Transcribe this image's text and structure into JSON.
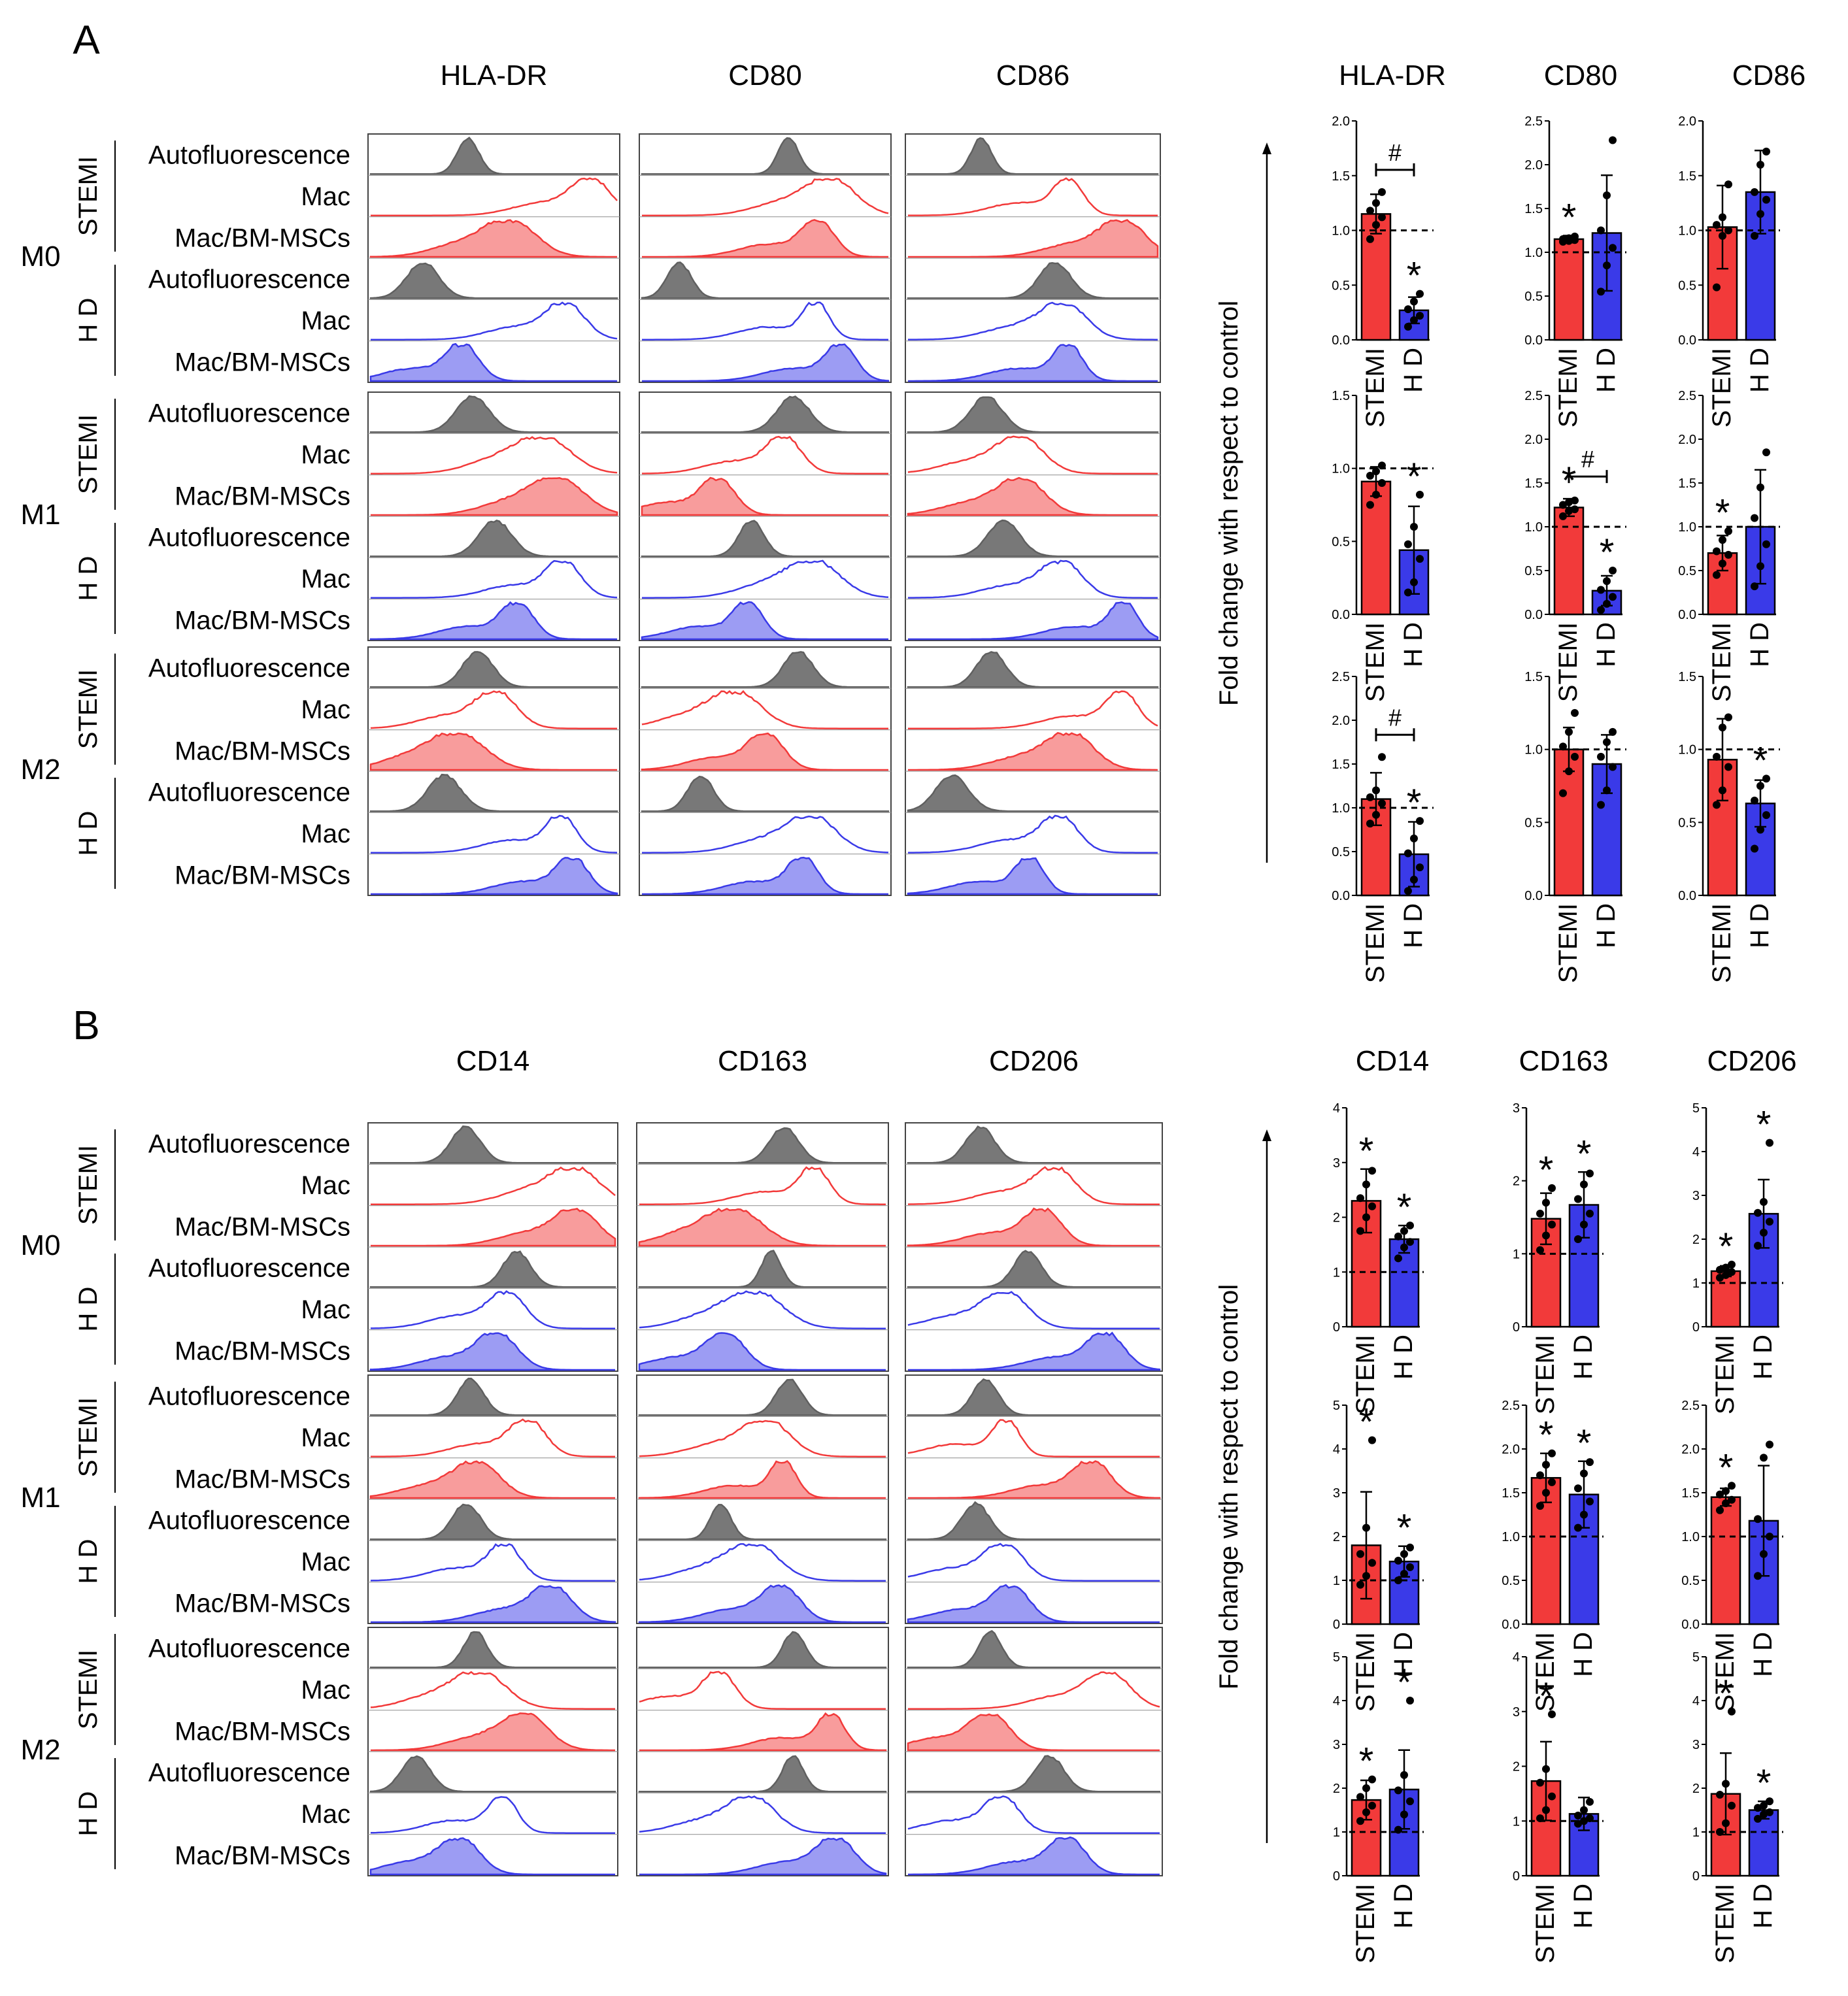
{
  "colors": {
    "stemi": "#f23a3a",
    "hd": "#3a3ae8",
    "auto": "#606060",
    "axis": "#000000"
  },
  "figure": {
    "panels": [
      {
        "letter": "A",
        "hist_markers": [
          "HLA-DR",
          "CD80",
          "CD86"
        ],
        "bar_markers": [
          "HLA-DR",
          "CD80",
          "CD86"
        ]
      },
      {
        "letter": "B",
        "hist_markers": [
          "CD14",
          "CD163",
          "CD206"
        ],
        "bar_markers": [
          "CD14",
          "CD163",
          "CD206"
        ]
      }
    ],
    "macrophage_types": [
      "M0",
      "M1",
      "M2"
    ],
    "donor_groups": [
      "STEMI",
      "H D"
    ],
    "row_labels": [
      "Autofluorescence",
      "Mac",
      "Mac/BM-MSCs"
    ],
    "y_axis_label": "Fold change with respect to control",
    "group_labels": [
      "STEMI",
      "H D"
    ]
  },
  "chart_data": [
    {
      "type": "bar",
      "panel": "A",
      "marker": "HLA-DR",
      "mac_type": "M0",
      "categories": [
        "STEMI",
        "H D"
      ],
      "values": [
        1.15,
        0.27
      ],
      "errors": [
        0.18,
        0.12
      ],
      "points": [
        [
          0.92,
          1.05,
          1.12,
          1.18,
          1.25,
          1.35
        ],
        [
          0.12,
          0.18,
          0.22,
          0.28,
          0.35,
          0.42
        ]
      ],
      "stars": [
        false,
        true
      ],
      "hash": true,
      "reference": 1.0,
      "ylim": [
        0,
        2.0
      ],
      "ticks": [
        "0.0",
        "0.5",
        "1.0",
        "1.5",
        "2.0"
      ]
    },
    {
      "type": "bar",
      "panel": "A",
      "marker": "CD80",
      "mac_type": "M0",
      "categories": [
        "STEMI",
        "H D"
      ],
      "values": [
        1.15,
        1.22
      ],
      "errors": [
        0.04,
        0.66
      ],
      "points": [
        [
          1.12,
          1.13,
          1.14,
          1.15,
          1.16,
          1.18
        ],
        [
          0.55,
          0.85,
          1.05,
          1.25,
          1.65,
          2.28
        ]
      ],
      "stars": [
        true,
        false
      ],
      "hash": false,
      "reference": 1.0,
      "ylim": [
        0,
        2.5
      ],
      "ticks": [
        "0.0",
        "0.5",
        "1.0",
        "1.5",
        "2.0",
        "2.5"
      ]
    },
    {
      "type": "bar",
      "panel": "A",
      "marker": "CD86",
      "mac_type": "M0",
      "categories": [
        "STEMI",
        "H D"
      ],
      "values": [
        1.03,
        1.35
      ],
      "errors": [
        0.38,
        0.38
      ],
      "points": [
        [
          0.48,
          0.95,
          1.0,
          1.05,
          1.12,
          1.42
        ],
        [
          0.95,
          1.15,
          1.28,
          1.35,
          1.6,
          1.72
        ]
      ],
      "stars": [
        false,
        false
      ],
      "hash": false,
      "reference": 1.0,
      "ylim": [
        0,
        2.0
      ],
      "ticks": [
        "0.0",
        "0.5",
        "1.0",
        "1.5",
        "2.0"
      ]
    },
    {
      "type": "bar",
      "panel": "A",
      "marker": "HLA-DR",
      "mac_type": "M1",
      "categories": [
        "STEMI",
        "H D"
      ],
      "values": [
        0.91,
        0.44
      ],
      "errors": [
        0.1,
        0.3
      ],
      "points": [
        [
          0.75,
          0.82,
          0.9,
          0.95,
          0.98,
          1.02
        ],
        [
          0.15,
          0.22,
          0.38,
          0.48,
          0.6,
          0.82
        ]
      ],
      "stars": [
        false,
        true
      ],
      "hash": false,
      "reference": 1.0,
      "ylim": [
        0,
        1.5
      ],
      "ticks": [
        "0.0",
        "0.5",
        "1.0",
        "1.5"
      ]
    },
    {
      "type": "bar",
      "panel": "A",
      "marker": "CD80",
      "mac_type": "M1",
      "categories": [
        "STEMI",
        "H D"
      ],
      "values": [
        1.22,
        0.27
      ],
      "errors": [
        0.1,
        0.17
      ],
      "points": [
        [
          1.12,
          1.18,
          1.2,
          1.25,
          1.28,
          1.3
        ],
        [
          0.05,
          0.12,
          0.2,
          0.28,
          0.38,
          0.5
        ]
      ],
      "stars": [
        true,
        true
      ],
      "hash": true,
      "reference": 1.0,
      "ylim": [
        0,
        2.5
      ],
      "ticks": [
        "0.0",
        "0.5",
        "1.0",
        "1.5",
        "2.0",
        "2.5"
      ]
    },
    {
      "type": "bar",
      "panel": "A",
      "marker": "CD86",
      "mac_type": "M1",
      "categories": [
        "STEMI",
        "H D"
      ],
      "values": [
        0.7,
        1.0
      ],
      "errors": [
        0.2,
        0.65
      ],
      "points": [
        [
          0.45,
          0.58,
          0.68,
          0.72,
          0.85,
          0.95
        ],
        [
          0.32,
          0.55,
          0.8,
          1.1,
          1.45,
          1.85
        ]
      ],
      "stars": [
        true,
        false
      ],
      "hash": false,
      "reference": 1.0,
      "ylim": [
        0,
        2.5
      ],
      "ticks": [
        "0.0",
        "0.5",
        "1.0",
        "1.5",
        "2.0",
        "2.5"
      ]
    },
    {
      "type": "bar",
      "panel": "A",
      "marker": "HLA-DR",
      "mac_type": "M2",
      "categories": [
        "STEMI",
        "H D"
      ],
      "values": [
        1.1,
        0.47
      ],
      "errors": [
        0.3,
        0.37
      ],
      "points": [
        [
          0.82,
          0.92,
          1.05,
          1.12,
          1.2,
          1.58
        ],
        [
          0.05,
          0.18,
          0.32,
          0.48,
          0.65,
          0.85
        ]
      ],
      "stars": [
        false,
        true
      ],
      "hash": true,
      "reference": 1.0,
      "ylim": [
        0,
        2.5
      ],
      "ticks": [
        "0.0",
        "0.5",
        "1.0",
        "1.5",
        "2.0",
        "2.5"
      ]
    },
    {
      "type": "bar",
      "panel": "A",
      "marker": "CD80",
      "mac_type": "M2",
      "categories": [
        "STEMI",
        "H D"
      ],
      "values": [
        1.0,
        0.9
      ],
      "errors": [
        0.15,
        0.2
      ],
      "points": [
        [
          0.7,
          0.85,
          0.95,
          1.02,
          1.12,
          1.25
        ],
        [
          0.62,
          0.72,
          0.88,
          0.95,
          1.05,
          1.12
        ]
      ],
      "stars": [
        false,
        false
      ],
      "hash": false,
      "reference": 1.0,
      "ylim": [
        0,
        1.5
      ],
      "ticks": [
        "0.0",
        "0.5",
        "1.0",
        "1.5"
      ]
    },
    {
      "type": "bar",
      "panel": "A",
      "marker": "CD86",
      "mac_type": "M2",
      "categories": [
        "STEMI",
        "H D"
      ],
      "values": [
        0.93,
        0.63
      ],
      "errors": [
        0.28,
        0.16
      ],
      "points": [
        [
          0.62,
          0.72,
          0.88,
          0.95,
          1.15,
          1.22
        ],
        [
          0.32,
          0.45,
          0.55,
          0.65,
          0.75,
          0.8
        ]
      ],
      "stars": [
        false,
        true
      ],
      "hash": false,
      "reference": 1.0,
      "ylim": [
        0,
        1.5
      ],
      "ticks": [
        "0.0",
        "0.5",
        "1.0",
        "1.5"
      ]
    },
    {
      "type": "bar",
      "panel": "B",
      "marker": "CD14",
      "mac_type": "M0",
      "categories": [
        "STEMI",
        "H D"
      ],
      "values": [
        2.3,
        1.6
      ],
      "errors": [
        0.58,
        0.25
      ],
      "points": [
        [
          1.75,
          2.0,
          2.2,
          2.35,
          2.6,
          2.85
        ],
        [
          1.25,
          1.45,
          1.55,
          1.65,
          1.75,
          1.85
        ]
      ],
      "stars": [
        true,
        true
      ],
      "hash": false,
      "reference": 1.0,
      "ylim": [
        0,
        4
      ],
      "ticks": [
        "0",
        "1",
        "2",
        "3",
        "4"
      ]
    },
    {
      "type": "bar",
      "panel": "B",
      "marker": "CD163",
      "mac_type": "M0",
      "categories": [
        "STEMI",
        "H D"
      ],
      "values": [
        1.48,
        1.67
      ],
      "errors": [
        0.35,
        0.45
      ],
      "points": [
        [
          1.05,
          1.25,
          1.4,
          1.55,
          1.7,
          1.9
        ],
        [
          1.2,
          1.4,
          1.55,
          1.75,
          1.95,
          2.1
        ]
      ],
      "stars": [
        true,
        true
      ],
      "hash": false,
      "reference": 1.0,
      "ylim": [
        0,
        3
      ],
      "ticks": [
        "0",
        "1",
        "2",
        "3"
      ]
    },
    {
      "type": "bar",
      "panel": "B",
      "marker": "CD206",
      "mac_type": "M0",
      "categories": [
        "STEMI",
        "H D"
      ],
      "values": [
        1.27,
        2.58
      ],
      "errors": [
        0.12,
        0.78
      ],
      "points": [
        [
          1.12,
          1.18,
          1.25,
          1.3,
          1.35,
          1.42
        ],
        [
          1.85,
          2.15,
          2.4,
          2.6,
          2.85,
          4.2
        ]
      ],
      "stars": [
        true,
        true
      ],
      "hash": false,
      "reference": 1.0,
      "ylim": [
        0,
        5
      ],
      "ticks": [
        "0",
        "1",
        "2",
        "3",
        "4",
        "5"
      ]
    },
    {
      "type": "bar",
      "panel": "B",
      "marker": "CD14",
      "mac_type": "M1",
      "categories": [
        "STEMI",
        "H D"
      ],
      "values": [
        1.8,
        1.43
      ],
      "errors": [
        1.22,
        0.35
      ],
      "points": [
        [
          0.9,
          1.1,
          1.4,
          1.6,
          2.2,
          4.2
        ],
        [
          1.0,
          1.15,
          1.3,
          1.45,
          1.6,
          1.75
        ]
      ],
      "stars": [
        true,
        true
      ],
      "hash": false,
      "reference": 1.0,
      "ylim": [
        0,
        5
      ],
      "ticks": [
        "0",
        "1",
        "2",
        "3",
        "4",
        "5"
      ]
    },
    {
      "type": "bar",
      "panel": "B",
      "marker": "CD163",
      "mac_type": "M1",
      "categories": [
        "STEMI",
        "H D"
      ],
      "values": [
        1.67,
        1.48
      ],
      "errors": [
        0.28,
        0.38
      ],
      "points": [
        [
          1.35,
          1.5,
          1.62,
          1.7,
          1.82,
          1.95
        ],
        [
          1.1,
          1.25,
          1.4,
          1.55,
          1.72,
          1.85
        ]
      ],
      "stars": [
        true,
        true
      ],
      "hash": false,
      "reference": 1.0,
      "ylim": [
        0,
        2.5
      ],
      "ticks": [
        "0.0",
        "0.5",
        "1.0",
        "1.5",
        "2.0",
        "2.5"
      ]
    },
    {
      "type": "bar",
      "panel": "B",
      "marker": "CD206",
      "mac_type": "M1",
      "categories": [
        "STEMI",
        "H D"
      ],
      "values": [
        1.45,
        1.18
      ],
      "errors": [
        0.1,
        0.63
      ],
      "points": [
        [
          1.3,
          1.38,
          1.42,
          1.48,
          1.52,
          1.58
        ],
        [
          0.55,
          0.8,
          1.0,
          1.2,
          1.9,
          2.05
        ]
      ],
      "stars": [
        true,
        false
      ],
      "hash": false,
      "reference": 1.0,
      "ylim": [
        0,
        2.5
      ],
      "ticks": [
        "0.0",
        "0.5",
        "1.0",
        "1.5",
        "2.0",
        "2.5"
      ]
    },
    {
      "type": "bar",
      "panel": "B",
      "marker": "CD14",
      "mac_type": "M2",
      "categories": [
        "STEMI",
        "H D"
      ],
      "values": [
        1.73,
        1.97
      ],
      "errors": [
        0.45,
        0.9
      ],
      "points": [
        [
          1.25,
          1.45,
          1.6,
          1.8,
          2.0,
          2.2
        ],
        [
          1.05,
          1.4,
          1.7,
          1.95,
          2.3,
          4.0
        ]
      ],
      "stars": [
        true,
        true
      ],
      "hash": false,
      "reference": 1.0,
      "ylim": [
        0,
        5
      ],
      "ticks": [
        "0",
        "1",
        "2",
        "3",
        "4",
        "5"
      ]
    },
    {
      "type": "bar",
      "panel": "B",
      "marker": "CD163",
      "mac_type": "M2",
      "categories": [
        "STEMI",
        "H D"
      ],
      "values": [
        1.73,
        1.13
      ],
      "errors": [
        0.72,
        0.3
      ],
      "points": [
        [
          1.05,
          1.2,
          1.45,
          1.7,
          1.95,
          2.95
        ],
        [
          0.95,
          1.0,
          1.05,
          1.1,
          1.2,
          1.35
        ]
      ],
      "stars": [
        true,
        false
      ],
      "hash": false,
      "reference": 1.0,
      "ylim": [
        0,
        4
      ],
      "ticks": [
        "0",
        "1",
        "2",
        "3",
        "4"
      ]
    },
    {
      "type": "bar",
      "panel": "B",
      "marker": "CD206",
      "mac_type": "M2",
      "categories": [
        "STEMI",
        "H D"
      ],
      "values": [
        1.87,
        1.5
      ],
      "errors": [
        0.93,
        0.2
      ],
      "points": [
        [
          1.0,
          1.2,
          1.6,
          1.85,
          2.1,
          3.75
        ],
        [
          1.3,
          1.4,
          1.45,
          1.55,
          1.6,
          1.7
        ]
      ],
      "stars": [
        true,
        true
      ],
      "hash": false,
      "reference": 1.0,
      "ylim": [
        0,
        5
      ],
      "ticks": [
        "0",
        "1",
        "2",
        "3",
        "4",
        "5"
      ]
    }
  ]
}
